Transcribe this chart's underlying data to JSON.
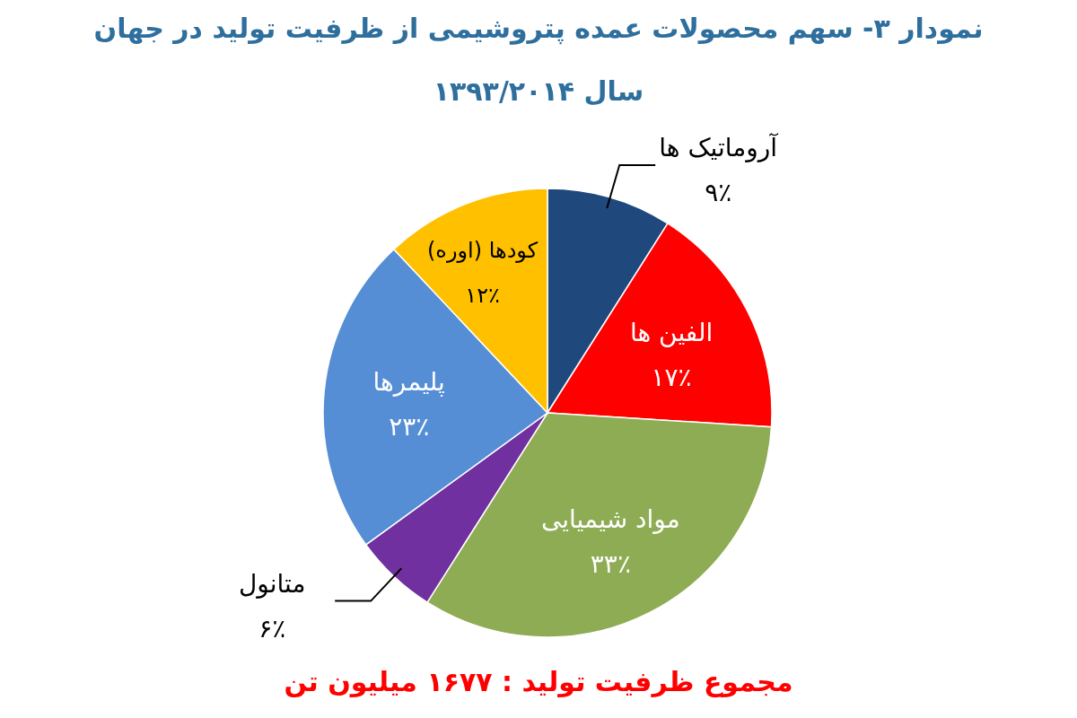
{
  "chart_data": {
    "type": "pie",
    "title": "نمودار ۳- سهم محصولات عمده پتروشیمی از ظرفیت تولید در جهان",
    "subtitle": "سال ۱۳۹۳/۲۰۱۴",
    "categories": [
      "آروماتیک ها",
      "الفین ها",
      "مواد شیمیایی",
      "متانول",
      "پلیمرها",
      "کودها (اوره)"
    ],
    "values": [
      9,
      17,
      33,
      6,
      23,
      12
    ],
    "value_labels": [
      "۹٪",
      "۱۷٪",
      "۳۳٪",
      "۶٪",
      "۲۳٪",
      "۱۲٪"
    ],
    "colors": [
      "#1f497d",
      "#ff0000",
      "#8eac54",
      "#7030a0",
      "#558ed5",
      "#ffc000"
    ],
    "annotations": [
      "مجموع ظرفیت تولید : ۱۶۷۷ میلیون تن"
    ]
  }
}
